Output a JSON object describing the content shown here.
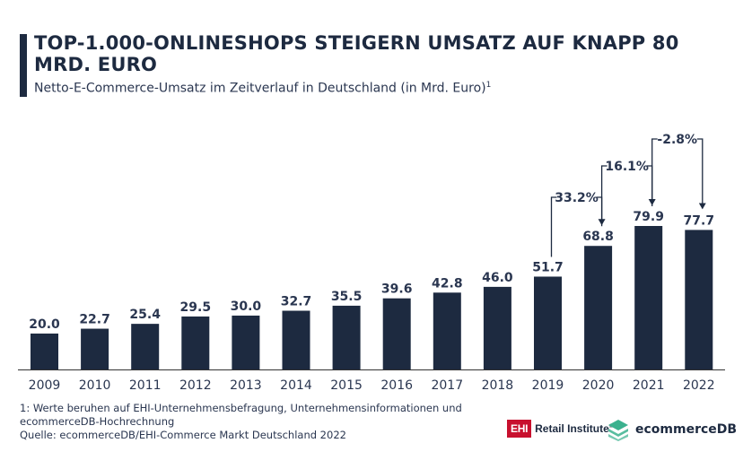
{
  "title": "TOP-1.000-ONLINESHOPS STEIGERN UMSATZ AUF KNAPP 80 MRD. EURO",
  "subtitle": "Netto-E-Commerce-Umsatz im Zeitverlauf in Deutschland (in Mrd. Euro)",
  "subtitle_footnote_mark": "1",
  "footnote_lines": [
    "1: Werte beruhen auf EHI-Unternehmensbefragung, Unternehmensinformationen und",
    "ecommerceDB-Hochrechnung",
    "Quelle: ecommerceDB/EHI-Commerce Markt Deutschland 2022"
  ],
  "logos": {
    "ehi_box": "EHI",
    "ehi_text": "Retail Institute",
    "ehi_mark": "®",
    "edb_text": "ecommerceDB"
  },
  "colors": {
    "bar": "#1d2a40",
    "text": "#2a3650",
    "ehi_red": "#c8102e",
    "edb_green": "#3bb18e"
  },
  "chart_data": {
    "type": "bar",
    "categories": [
      "2009",
      "2010",
      "2011",
      "2012",
      "2013",
      "2014",
      "2015",
      "2016",
      "2017",
      "2018",
      "2019",
      "2020",
      "2021",
      "2022"
    ],
    "values": [
      20.0,
      22.7,
      25.4,
      29.5,
      30.0,
      32.7,
      35.5,
      39.6,
      42.8,
      46.0,
      51.7,
      68.8,
      79.9,
      77.7
    ],
    "value_labels": [
      "20.0",
      "22.7",
      "25.4",
      "29.5",
      "30.0",
      "32.7",
      "35.5",
      "39.6",
      "42.8",
      "46.0",
      "51.7",
      "68.8",
      "79.9",
      "77.7"
    ],
    "ylim": [
      0,
      80
    ],
    "grid": false,
    "annotations": [
      {
        "from": "2019",
        "to": "2020",
        "label": "33.2%"
      },
      {
        "from": "2020",
        "to": "2021",
        "label": "16.1%"
      },
      {
        "from": "2021",
        "to": "2022",
        "label": "-2.8%"
      }
    ]
  }
}
